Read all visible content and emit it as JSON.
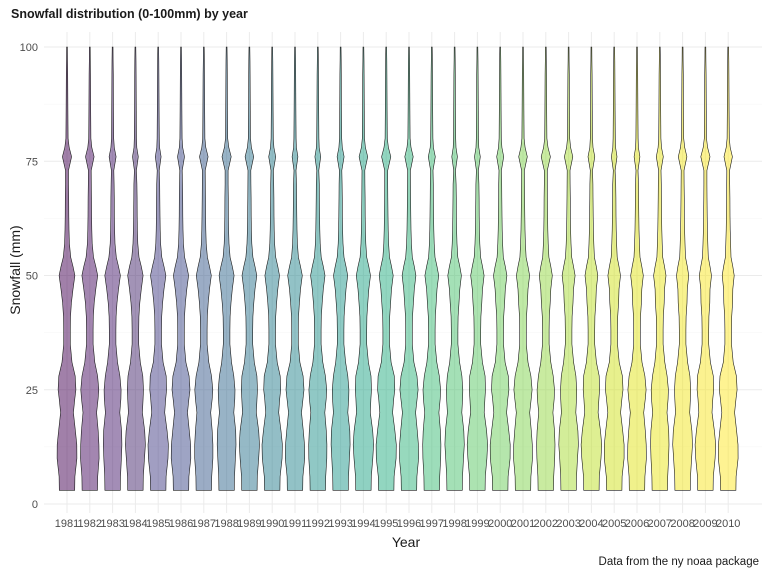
{
  "chart_data": {
    "type": "violin",
    "title": "Snowfall distribution (0-100mm) by year",
    "caption": "Data from the ny noaa package",
    "xlabel": "Year",
    "ylabel": "Snowfall (mm)",
    "ylim": [
      0,
      100
    ],
    "yticks": [
      0,
      25,
      50,
      75,
      100
    ],
    "grid": true,
    "legend": "none",
    "palette": "viridis",
    "categories": [
      "1981",
      "1982",
      "1983",
      "1984",
      "1985",
      "1986",
      "1987",
      "1988",
      "1989",
      "1990",
      "1991",
      "1992",
      "1993",
      "1994",
      "1995",
      "1996",
      "1997",
      "1998",
      "1999",
      "2000",
      "2001",
      "2002",
      "2003",
      "2004",
      "2005",
      "2006",
      "2007",
      "2008",
      "2009",
      "2010"
    ],
    "colors": [
      "#440154",
      "#470e61",
      "#481b6d",
      "#46286e",
      "#433e85",
      "#3d4a89",
      "#375a8c",
      "#31688e",
      "#2c738e",
      "#287d8e",
      "#25858e",
      "#21918c",
      "#1f988b",
      "#20a386",
      "#26ad81",
      "#2fb47c",
      "#3bbb75",
      "#4ac16d",
      "#5ac864",
      "#6ccd5a",
      "#7fd34e",
      "#93d741",
      "#a8db34",
      "#bddf26",
      "#d0e11c",
      "#e1e318",
      "#eae51a",
      "#f1e51d",
      "#f8e621",
      "#fde725"
    ],
    "series": [
      {
        "name": "Snowfall (mm)",
        "y_range_per_year": [
          3,
          100
        ],
        "density_profile": {
          "y": [
            3,
            6,
            10,
            13,
            16,
            20,
            23,
            25,
            28,
            31,
            35,
            38,
            41,
            44,
            47,
            50,
            52,
            54,
            57,
            60,
            63,
            67,
            70,
            73,
            76,
            78,
            80,
            83,
            86,
            90,
            94,
            97,
            100
          ],
          "relative_width": [
            0.7,
            0.72,
            0.85,
            0.88,
            0.8,
            0.62,
            0.72,
            0.78,
            0.7,
            0.45,
            0.3,
            0.3,
            0.32,
            0.4,
            0.55,
            0.72,
            0.55,
            0.34,
            0.22,
            0.18,
            0.16,
            0.15,
            0.14,
            0.14,
            0.42,
            0.2,
            0.1,
            0.09,
            0.08,
            0.07,
            0.06,
            0.05,
            0.04
          ]
        }
      }
    ]
  }
}
